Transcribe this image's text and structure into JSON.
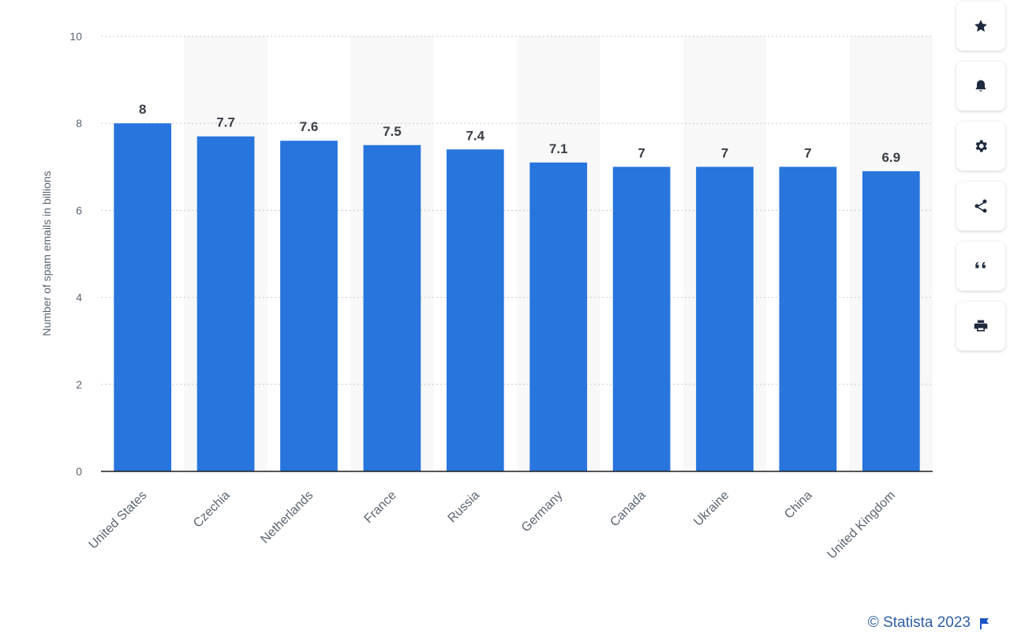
{
  "chart_data": {
    "type": "bar",
    "categories": [
      "United States",
      "Czechia",
      "Netherlands",
      "France",
      "Russia",
      "Germany",
      "Canada",
      "Ukraine",
      "China",
      "United Kingdom"
    ],
    "values": [
      8,
      7.7,
      7.6,
      7.5,
      7.4,
      7.1,
      7,
      7,
      7,
      6.9
    ],
    "data_labels": [
      "8",
      "7.7",
      "7.6",
      "7.5",
      "7.4",
      "7.1",
      "7",
      "7",
      "7",
      "6.9"
    ],
    "ylabel": "Number of spam emails in billions",
    "ylim": [
      0,
      10
    ],
    "yticks": [
      0,
      2,
      4,
      6,
      8,
      10
    ],
    "grid": true,
    "bar_color": "#2775dd",
    "stripe_color": "#f8f8f8"
  },
  "toolbar": {
    "buttons": [
      {
        "name": "favorite-button",
        "icon": "star-icon"
      },
      {
        "name": "notification-button",
        "icon": "bell-icon"
      },
      {
        "name": "settings-button",
        "icon": "gear-icon"
      },
      {
        "name": "share-button",
        "icon": "share-icon"
      },
      {
        "name": "cite-button",
        "icon": "quote-icon"
      },
      {
        "name": "print-button",
        "icon": "printer-icon"
      }
    ]
  },
  "credit": {
    "text": "© Statista 2023",
    "color": "#2d5fa8"
  }
}
